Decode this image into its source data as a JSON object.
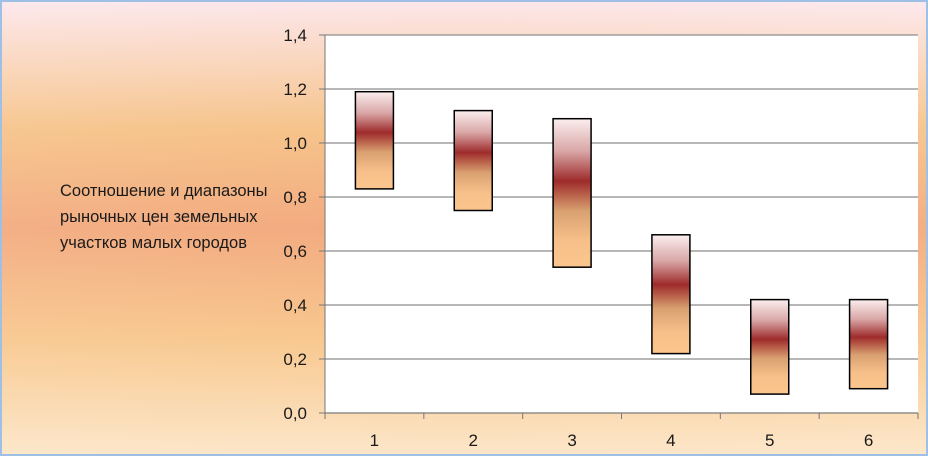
{
  "chart_data": {
    "type": "floating-bar",
    "title": "",
    "side_label": "Соотношение и диапазоны рыночных цен земельных участков малых городов",
    "categories": [
      "1",
      "2",
      "3",
      "4",
      "5",
      "6"
    ],
    "ranges": [
      {
        "low": 0.83,
        "high": 1.19
      },
      {
        "low": 0.75,
        "high": 1.12
      },
      {
        "low": 0.54,
        "high": 1.09
      },
      {
        "low": 0.22,
        "high": 0.66
      },
      {
        "low": 0.07,
        "high": 0.42
      },
      {
        "low": 0.09,
        "high": 0.42
      }
    ],
    "ylim": [
      0,
      1.4
    ],
    "yticks": [
      "0,0",
      "0,2",
      "0,4",
      "0,6",
      "0,8",
      "1,0",
      "1,2",
      "1,4"
    ],
    "grid": true,
    "colors": {
      "bar_top": "#f7e3e0",
      "bar_mid": "#9e2b2b",
      "bar_low": "#f9c08c",
      "plot_bg": "#ffffff",
      "grid": "#8c8c8c"
    }
  }
}
